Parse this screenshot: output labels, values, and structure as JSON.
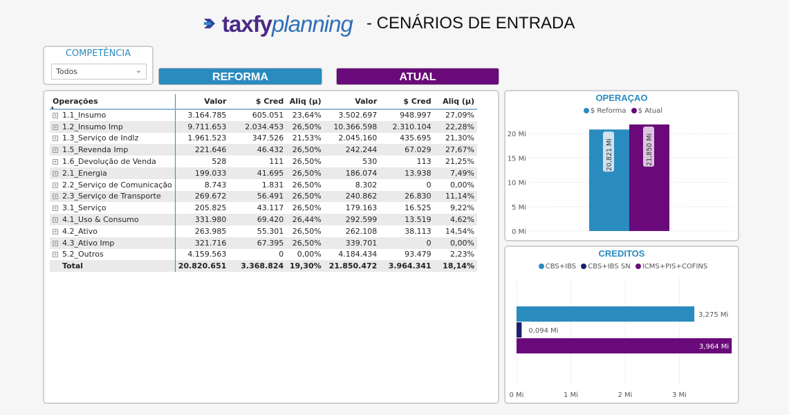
{
  "header": {
    "logo_part1": "taxfy",
    "logo_part2": "planning",
    "title": "- CENÁRIOS DE ENTRADA"
  },
  "filter": {
    "label": "COMPETÊNCIA",
    "value": "Todos"
  },
  "buttons": {
    "reforma": "REFORMA",
    "atual": "ATUAL"
  },
  "colors": {
    "reforma": "#2a8bbf",
    "atual": "#6a0a7a",
    "cbs_ibs_sn": "#1b1f6e"
  },
  "table": {
    "headers": [
      "Operações",
      "Valor",
      "$ Cred",
      "Aliq (µ)",
      "Valor",
      "$ Cred",
      "Aliq (µ)"
    ],
    "rows": [
      [
        "1.1_Insumo",
        "3.164.785",
        "605.051",
        "23,64%",
        "3.502.697",
        "948.997",
        "27,09%"
      ],
      [
        "1.2_Insumo Imp",
        "9.711.653",
        "2.034.453",
        "26,50%",
        "10.366.598",
        "2.310.104",
        "22,28%"
      ],
      [
        "1.3_Serviço de Indlz",
        "1.961.523",
        "347.526",
        "21,53%",
        "2.045.160",
        "435.695",
        "21,30%"
      ],
      [
        "1.5_Revenda Imp",
        "221.646",
        "46.432",
        "26,50%",
        "242.244",
        "67.029",
        "27,67%"
      ],
      [
        "1.6_Devolução de Venda",
        "528",
        "111",
        "26,50%",
        "530",
        "113",
        "21,25%"
      ],
      [
        "2.1_Energia",
        "199.033",
        "41.695",
        "26,50%",
        "186.074",
        "13.938",
        "7,49%"
      ],
      [
        "2.2_Serviço de Comunicação",
        "8.743",
        "1.831",
        "26,50%",
        "8.302",
        "0",
        "0,00%"
      ],
      [
        "2.3_Serviço de Transporte",
        "269.672",
        "56.491",
        "26,50%",
        "240.862",
        "26.830",
        "11,14%"
      ],
      [
        "3.1_Serviço",
        "205.825",
        "43.117",
        "26,50%",
        "179.163",
        "16.525",
        "9,22%"
      ],
      [
        "4.1_Uso & Consumo",
        "331.980",
        "69.420",
        "26,44%",
        "292.599",
        "13.519",
        "4,62%"
      ],
      [
        "4.2_Ativo",
        "263.985",
        "55.301",
        "26,50%",
        "262.108",
        "38.113",
        "14,54%"
      ],
      [
        "4.3_Ativo Imp",
        "321.716",
        "67.395",
        "26,50%",
        "339.701",
        "0",
        "0,00%"
      ],
      [
        "5.2_Outros",
        "4.159.563",
        "0",
        "0,00%",
        "4.184.434",
        "93.479",
        "2,23%"
      ]
    ],
    "total": [
      "Total",
      "20.820.651",
      "3.368.824",
      "19,30%",
      "21.850.472",
      "3.964.341",
      "18,14%"
    ]
  },
  "chart_data": [
    {
      "type": "bar",
      "title": "OPERAÇAO",
      "legend": [
        "$ Reforma",
        "$ Atual"
      ],
      "legend_position": "top-center",
      "series": [
        {
          "name": "$ Reforma",
          "values": [
            20.821
          ],
          "label": "20,821 Mi"
        },
        {
          "name": "$ Atual",
          "values": [
            21.85
          ],
          "label": "21,850 Mi"
        }
      ],
      "yticks": [
        "0 Mi",
        "5 Mi",
        "10 Mi",
        "15 Mi",
        "20 Mi"
      ],
      "ylim": [
        0,
        22
      ],
      "grid": true
    },
    {
      "type": "bar",
      "orientation": "horizontal",
      "title": "CREDITOS",
      "legend": [
        "CBS+IBS",
        "CBS+IBS SN",
        "ICMS+PIS+COFINS"
      ],
      "legend_position": "top-center",
      "series": [
        {
          "name": "CBS+IBS",
          "values": [
            3.275
          ],
          "label": "3,275 Mi"
        },
        {
          "name": "CBS+IBS SN",
          "values": [
            0.094
          ],
          "label": "0,094 Mi"
        },
        {
          "name": "ICMS+PIS+COFINS",
          "values": [
            3.964
          ],
          "label": "3,964 Mi"
        }
      ],
      "xticks": [
        "0 Mi",
        "1 Mi",
        "2 Mi",
        "3 Mi"
      ],
      "xlim": [
        0,
        4
      ],
      "grid": true
    }
  ]
}
